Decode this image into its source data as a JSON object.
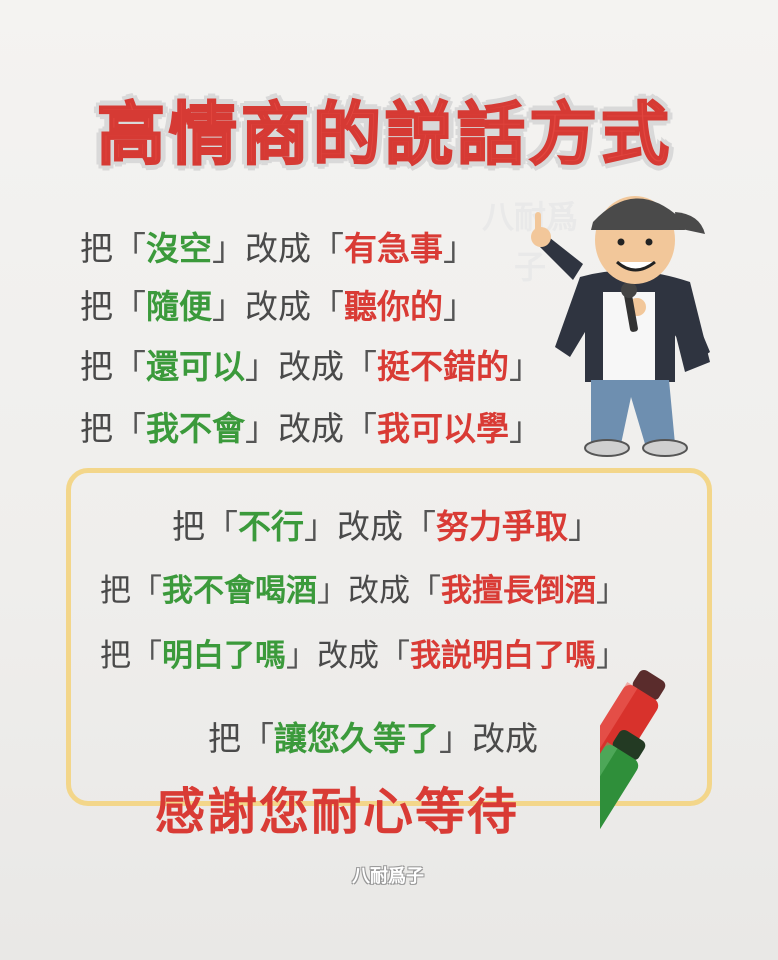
{
  "title": "高情商的説話方式",
  "watermark": "八耐爲子",
  "lines": [
    {
      "prefix": "把",
      "from": "沒空",
      "mid": "改成",
      "to": "有急事"
    },
    {
      "prefix": "把",
      "from": "隨便",
      "mid": "改成",
      "to": "聽你的"
    },
    {
      "prefix": "把",
      "from": "還可以",
      "mid": "改成",
      "to": "挺不錯的"
    },
    {
      "prefix": "把",
      "from": "我不會",
      "mid": "改成",
      "to": "我可以學"
    },
    {
      "prefix": "把",
      "from": "不行",
      "mid": "改成",
      "to": "努力爭取"
    },
    {
      "prefix": "把",
      "from": "我不會喝酒",
      "mid": "改成",
      "to": "我擅長倒酒"
    },
    {
      "prefix": "把",
      "from": "明白了嗎",
      "mid": "改成",
      "to": "我説明白了嗎"
    },
    {
      "prefix": "把",
      "from": "讓您久等了",
      "mid": "改成",
      "to": ""
    }
  ],
  "final_phrase": "感謝您耐心等待",
  "quote_open": "「",
  "quote_close": "」",
  "icons": {
    "character": "cartoon-man-with-microphone-icon",
    "markers": "red-green-marker-pens-icon",
    "heart": "heart-icon"
  },
  "colors": {
    "red": "#d93b35",
    "green": "#3b9a3b",
    "gray": "#4a4a4a",
    "box": "#f3d68a"
  }
}
